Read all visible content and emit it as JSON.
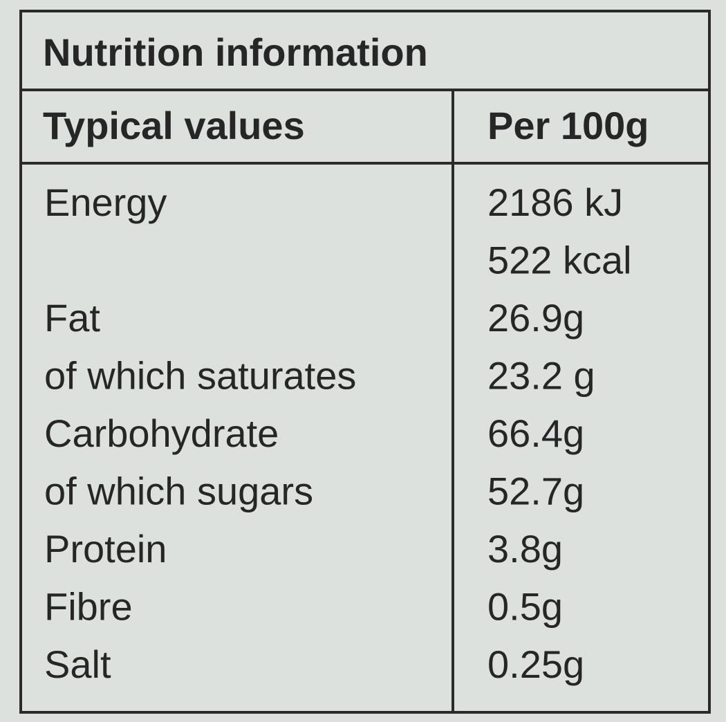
{
  "title": "Nutrition information",
  "header": [
    "Typical values",
    "Per 100g"
  ],
  "rows": [
    {
      "label": "Energy",
      "values": [
        "2186 kJ",
        "522 kcal"
      ]
    },
    {
      "label": "Fat",
      "values": [
        "26.9g"
      ]
    },
    {
      "label": "of which saturates",
      "values": [
        "23.2 g"
      ]
    },
    {
      "label": "Carbohydrate",
      "values": [
        "66.4g"
      ]
    },
    {
      "label": "of which sugars",
      "values": [
        "52.7g"
      ]
    },
    {
      "label": "Protein",
      "values": [
        "3.8g"
      ]
    },
    {
      "label": "Fibre",
      "values": [
        "0.5g"
      ]
    },
    {
      "label": "Salt",
      "values": [
        "0.25g"
      ]
    }
  ]
}
